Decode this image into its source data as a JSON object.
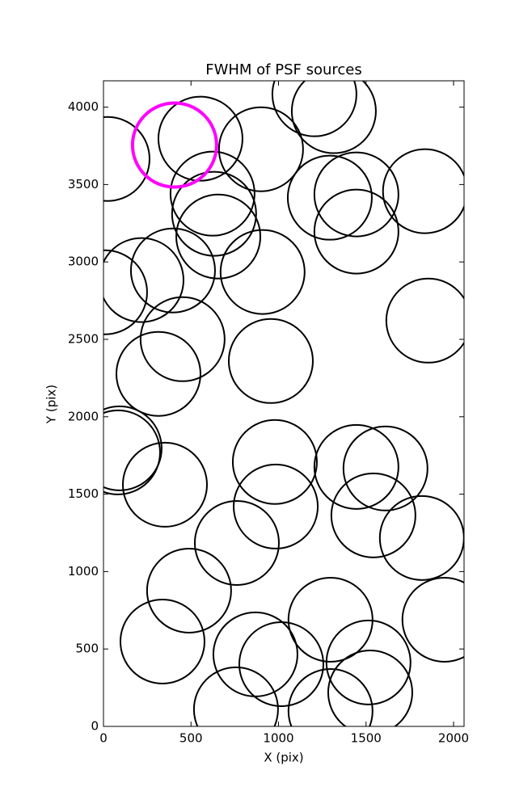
{
  "chart_data": {
    "type": "scatter",
    "title": "FWHM of PSF sources",
    "x_label": "X (pix)",
    "y_label": "Y (pix)",
    "xlim": [
      0,
      2060
    ],
    "ylim": [
      0,
      4170
    ],
    "xticks": [
      0,
      500,
      1000,
      1500,
      2000
    ],
    "yticks": [
      0,
      500,
      1000,
      1500,
      2000,
      2500,
      3000,
      3500,
      4000
    ],
    "grid": false,
    "series": [
      {
        "color": "#000000",
        "x": [
          23,
          554,
          900,
          1205,
          1316,
          623,
          632,
          656,
          1293,
          1445,
          1837,
          1445,
          909,
          397,
          217,
          9,
          452,
          1856,
          956,
          314,
          92,
          83,
          979,
          1445,
          1611,
          351,
          984,
          1819,
          1542,
          762,
          489,
          337,
          1297,
          1948,
          868,
          1016,
          1514,
          757,
          1297,
          1524
        ],
        "values": [
          3665,
          3796,
          3728,
          4083,
          3974,
          3441,
          3311,
          3164,
          3415,
          3436,
          3457,
          3196,
          2935,
          2945,
          2883,
          2804,
          2501,
          2621,
          2360,
          2277,
          1796,
          1770,
          1708,
          1676,
          1666,
          1561,
          1420,
          1217,
          1363,
          1185,
          877,
          548,
          689,
          689,
          465,
          402,
          413,
          110,
          99,
          219
        ]
      },
      {
        "color": "#ff00ff",
        "x": [
          406
        ],
        "values": [
          3755
        ]
      }
    ]
  }
}
